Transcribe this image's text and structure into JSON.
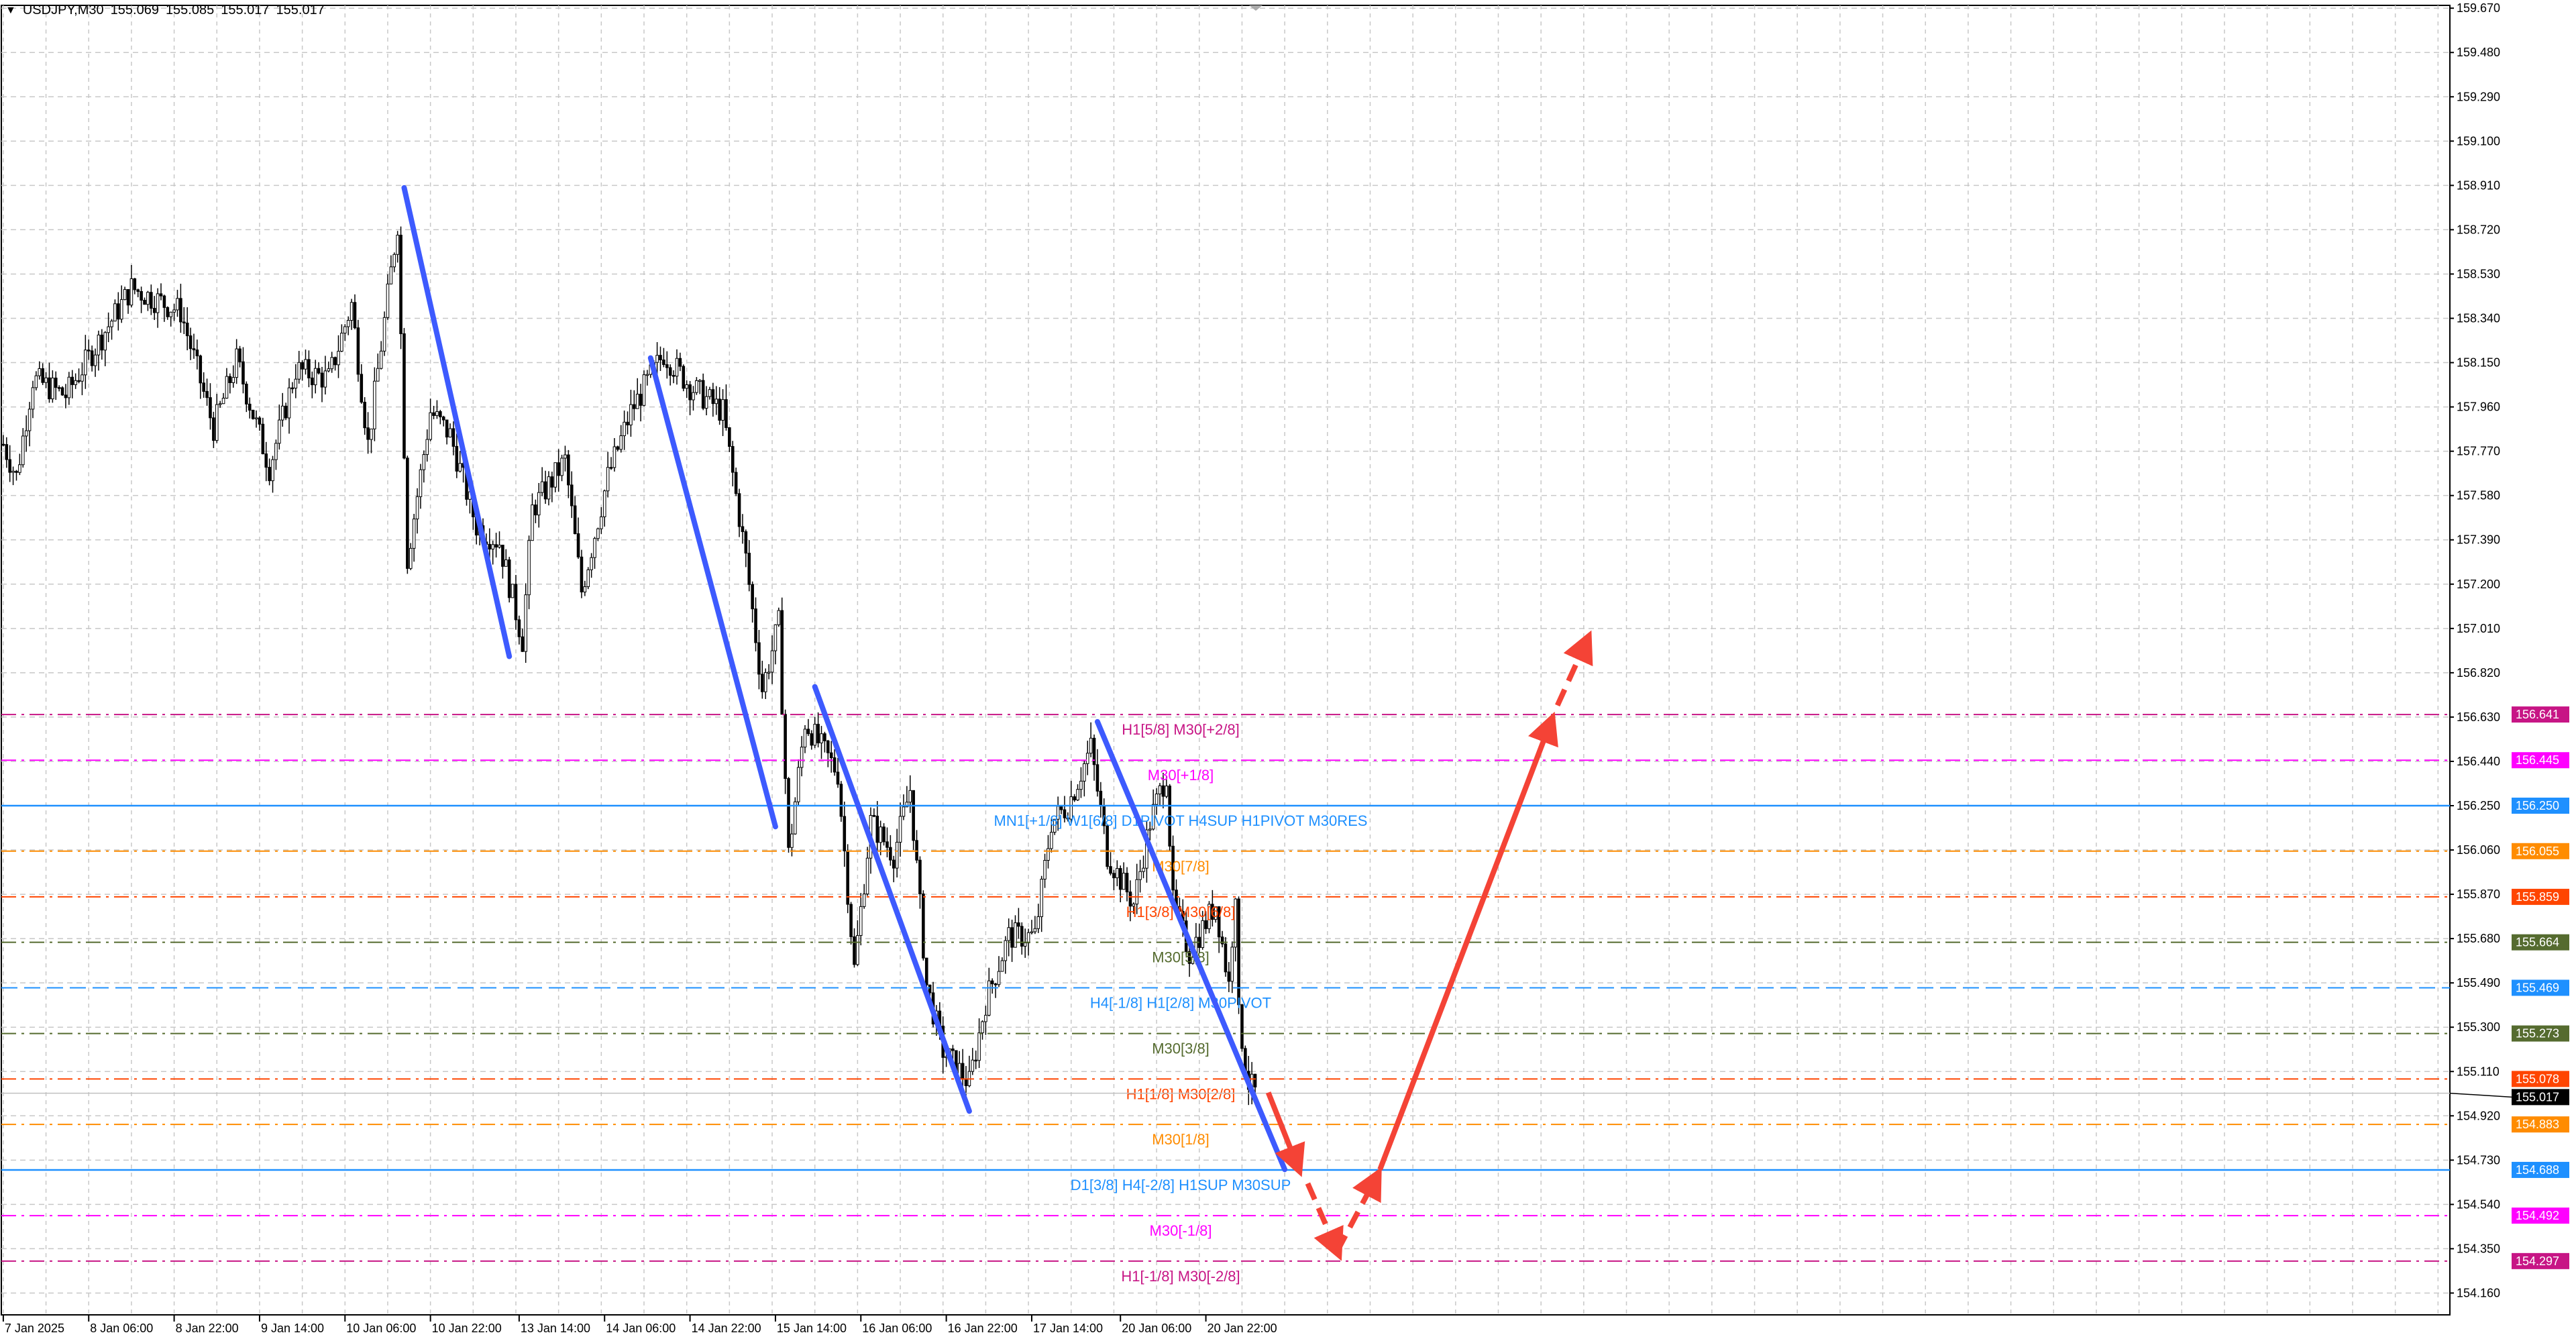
{
  "header": {
    "symbol": "USDJPY,M30",
    "open": "155.069",
    "high": "155.085",
    "low": "155.017",
    "close": "155.017",
    "menu_icon": "triangle-down-icon"
  },
  "chart_data": {
    "type": "candlestick",
    "symbol": "USDJPY",
    "timeframe": "M30",
    "ylim": [
      154.16,
      159.67
    ],
    "y_ticks": [
      "159.670",
      "159.480",
      "159.290",
      "159.100",
      "158.910",
      "158.720",
      "158.530",
      "158.340",
      "158.150",
      "157.960",
      "157.770",
      "157.580",
      "157.390",
      "157.200",
      "157.010",
      "156.820",
      "156.630",
      "156.440",
      "156.250",
      "156.060",
      "155.870",
      "155.680",
      "155.490",
      "155.300",
      "155.110",
      "154.920",
      "154.730",
      "154.540",
      "154.350",
      "154.160"
    ],
    "x_ticks": [
      {
        "bar": 0,
        "label": "7 Jan 2025"
      },
      {
        "bar": 26,
        "label": "8 Jan 06:00"
      },
      {
        "bar": 52,
        "label": "8 Jan 22:00"
      },
      {
        "bar": 78,
        "label": "9 Jan 14:00"
      },
      {
        "bar": 104,
        "label": "10 Jan 06:00"
      },
      {
        "bar": 130,
        "label": "10 Jan 22:00"
      },
      {
        "bar": 157,
        "label": "13 Jan 14:00"
      },
      {
        "bar": 183,
        "label": "14 Jan 06:00"
      },
      {
        "bar": 209,
        "label": "14 Jan 22:00"
      },
      {
        "bar": 235,
        "label": "15 Jan 14:00"
      },
      {
        "bar": 261,
        "label": "16 Jan 06:00"
      },
      {
        "bar": 287,
        "label": "16 Jan 22:00"
      },
      {
        "bar": 313,
        "label": "17 Jan 14:00"
      },
      {
        "bar": 340,
        "label": "20 Jan 06:00"
      },
      {
        "bar": 366,
        "label": "20 Jan 22:00"
      }
    ],
    "grid": true,
    "close_path": [
      [
        0,
        157.8
      ],
      [
        4,
        157.66
      ],
      [
        9,
        158.08
      ],
      [
        19,
        158.01
      ],
      [
        39,
        158.47
      ],
      [
        54,
        158.37
      ],
      [
        64,
        157.87
      ],
      [
        71,
        158.16
      ],
      [
        81,
        157.7
      ],
      [
        89,
        158.12
      ],
      [
        99,
        158.08
      ],
      [
        106,
        158.4
      ],
      [
        111,
        157.8
      ],
      [
        120,
        158.75
      ],
      [
        123,
        157.31
      ],
      [
        130,
        157.94
      ],
      [
        136,
        157.84
      ],
      [
        144,
        157.45
      ],
      [
        151,
        157.38
      ],
      [
        158,
        156.96
      ],
      [
        161,
        157.52
      ],
      [
        171,
        157.73
      ],
      [
        176,
        157.17
      ],
      [
        184,
        157.66
      ],
      [
        191,
        157.94
      ],
      [
        201,
        158.19
      ],
      [
        209,
        158.05
      ],
      [
        219,
        157.94
      ],
      [
        226,
        157.31
      ],
      [
        231,
        156.75
      ],
      [
        236,
        157.03
      ],
      [
        239,
        156.04
      ],
      [
        244,
        156.61
      ],
      [
        254,
        156.39
      ],
      [
        259,
        155.55
      ],
      [
        264,
        156.18
      ],
      [
        271,
        156.04
      ],
      [
        276,
        156.32
      ],
      [
        281,
        155.48
      ],
      [
        286,
        155.2
      ],
      [
        294,
        155.06
      ],
      [
        299,
        155.41
      ],
      [
        306,
        155.69
      ],
      [
        314,
        155.69
      ],
      [
        319,
        156.18
      ],
      [
        324,
        156.25
      ],
      [
        331,
        156.5
      ],
      [
        336,
        156.04
      ],
      [
        344,
        155.83
      ],
      [
        349,
        156.18
      ],
      [
        354,
        156.39
      ],
      [
        356,
        155.83
      ],
      [
        361,
        155.62
      ],
      [
        369,
        155.83
      ],
      [
        373,
        155.48
      ],
      [
        375,
        155.9
      ],
      [
        376,
        155.34
      ],
      [
        379,
        155.06
      ],
      [
        381,
        155.02
      ]
    ],
    "current_price": "155.017",
    "levels": [
      {
        "price": "156.641",
        "label": "H1[5/8] M30[+2/8]",
        "color": "#C71585",
        "style": "dashdot"
      },
      {
        "price": "156.445",
        "label": "M30[+1/8]",
        "color": "#FF00FF",
        "style": "dashdot"
      },
      {
        "price": "156.250",
        "label": "MN1[+1/8] W1[6/8] D1PIVOT H4SUP H1PIVOT M30RES",
        "color": "#1E90FF",
        "style": "solid"
      },
      {
        "price": "156.055",
        "label": "M30[7/8]",
        "color": "#FF8C00",
        "style": "dashdot"
      },
      {
        "price": "155.859",
        "label": "H1[3/8] M30[6/8]",
        "color": "#FF4500",
        "style": "dashdot"
      },
      {
        "price": "155.664",
        "label": "M30[5/8]",
        "color": "#556B2F",
        "style": "dashdot"
      },
      {
        "price": "155.469",
        "label": "H4[-1/8] H1[2/8] M30PIVOT",
        "color": "#1E90FF",
        "style": "dash"
      },
      {
        "price": "155.273",
        "label": "M30[3/8]",
        "color": "#556B2F",
        "style": "dashdot"
      },
      {
        "price": "155.078",
        "label": "H1[1/8] M30[2/8]",
        "color": "#FF4500",
        "style": "dashdot"
      },
      {
        "price": "154.883",
        "label": "M30[1/8]",
        "color": "#FF8C00",
        "style": "dashdot"
      },
      {
        "price": "154.688",
        "label": "D1[3/8] H4[-2/8] H1SUP M30SUP",
        "color": "#1E90FF",
        "style": "solid"
      },
      {
        "price": "154.492",
        "label": "M30[-1/8]",
        "color": "#FF00FF",
        "style": "dashdot"
      },
      {
        "price": "154.297",
        "label": "H1[-1/8] M30[-2/8]",
        "color": "#C71585",
        "style": "dashdot"
      }
    ],
    "trend_lines": [
      {
        "from": [
          122,
          158.9
        ],
        "to": [
          154,
          156.89
        ],
        "color": "#3D5AFE"
      },
      {
        "from": [
          197,
          158.17
        ],
        "to": [
          235,
          156.16
        ],
        "color": "#3D5AFE"
      },
      {
        "from": [
          247,
          156.76
        ],
        "to": [
          294,
          154.94
        ],
        "color": "#3D5AFE"
      },
      {
        "from": [
          333,
          156.61
        ],
        "to": [
          390,
          154.69
        ],
        "color": "#3D5AFE"
      }
    ],
    "forecast_arrows": [
      {
        "from": [
          385,
          155.02
        ],
        "to": [
          394,
          154.7
        ],
        "dashed": false
      },
      {
        "from": [
          397,
          154.63
        ],
        "to": [
          406,
          154.34
        ],
        "dashed": true
      },
      {
        "from": [
          406,
          154.34
        ],
        "to": [
          418,
          154.66
        ],
        "dashed": true
      },
      {
        "from": [
          419,
          154.69
        ],
        "to": [
          471,
          156.61
        ],
        "dashed": false
      },
      {
        "from": [
          473,
          156.68
        ],
        "to": [
          482,
          156.96
        ],
        "dashed": true
      }
    ],
    "forecast_color": "#F44336"
  }
}
